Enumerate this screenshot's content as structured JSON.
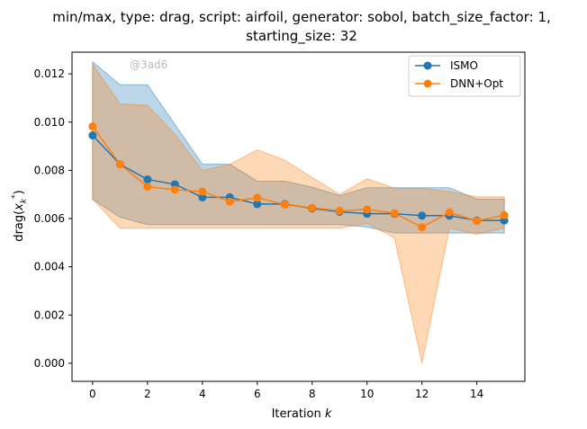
{
  "chart_data": {
    "type": "line",
    "title_line1": "min/max, type: drag, script: airfoil, generator: sobol, batch_size_factor: 1,",
    "title_line2": "starting_size: 32",
    "xlabel": "Iteration k",
    "ylabel": "drag(x_k^*)",
    "xlim": [
      -0.75,
      15.75
    ],
    "ylim": [
      -0.00075,
      0.0129
    ],
    "xticks": [
      0,
      2,
      4,
      6,
      8,
      10,
      12,
      14
    ],
    "yticks": [
      0.0,
      0.002,
      0.004,
      0.006,
      0.008,
      0.01,
      0.012
    ],
    "ytick_labels": [
      "0.000",
      "0.002",
      "0.004",
      "0.006",
      "0.008",
      "0.010",
      "0.012"
    ],
    "x": [
      0,
      1,
      2,
      3,
      4,
      5,
      6,
      7,
      8,
      9,
      10,
      11,
      12,
      13,
      14,
      15
    ],
    "series": [
      {
        "name": "ISMO",
        "color": "#1f77b4",
        "values": [
          0.00945,
          0.00825,
          0.00762,
          0.00742,
          0.00688,
          0.00688,
          0.0066,
          0.0066,
          0.00642,
          0.00628,
          0.0062,
          0.0062,
          0.00612,
          0.00612,
          0.00592,
          0.00592
        ],
        "min": [
          0.0068,
          0.00605,
          0.00575,
          0.00575,
          0.00575,
          0.00575,
          0.00575,
          0.00575,
          0.00575,
          0.00575,
          0.00565,
          0.0054,
          0.0054,
          0.0054,
          0.0054,
          0.0054
        ],
        "max": [
          0.0125,
          0.01155,
          0.01155,
          0.0099,
          0.00825,
          0.00825,
          0.00755,
          0.00755,
          0.0073,
          0.00695,
          0.00728,
          0.00728,
          0.00728,
          0.00728,
          0.0068,
          0.0068
        ]
      },
      {
        "name": "DNN+Opt",
        "color": "#ff7f0e",
        "values": [
          0.00982,
          0.00825,
          0.00732,
          0.0072,
          0.00712,
          0.0067,
          0.00686,
          0.00658,
          0.00645,
          0.00632,
          0.00638,
          0.00622,
          0.00564,
          0.00626,
          0.0059,
          0.00614
        ],
        "min": [
          0.0068,
          0.0056,
          0.0056,
          0.0056,
          0.0056,
          0.0056,
          0.0056,
          0.0056,
          0.0056,
          0.0056,
          0.0058,
          0.0052,
          0.0,
          0.0056,
          0.00535,
          0.0056
        ],
        "max": [
          0.0124,
          0.01075,
          0.0107,
          0.0095,
          0.008,
          0.00825,
          0.00885,
          0.00842,
          0.0077,
          0.007,
          0.00765,
          0.00726,
          0.00726,
          0.00712,
          0.0069,
          0.0069
        ]
      }
    ],
    "grid": false,
    "legend_position": "top-right"
  },
  "watermark": "@3ad6"
}
